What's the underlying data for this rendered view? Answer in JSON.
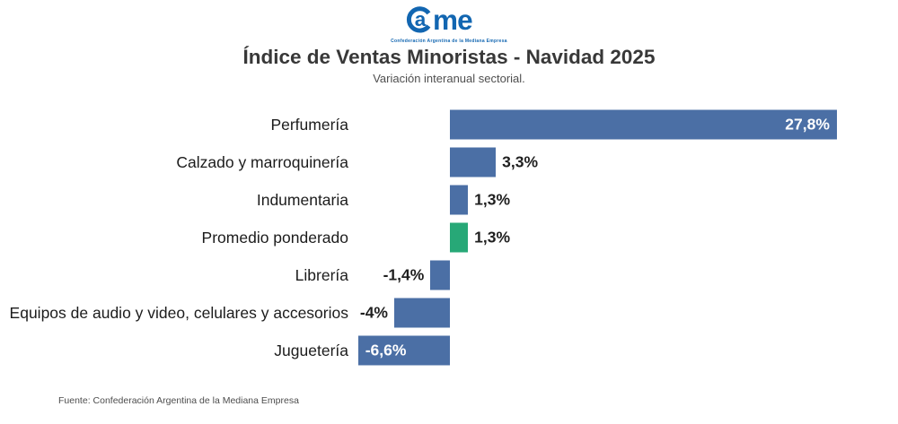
{
  "logo": {
    "letter_a": "a",
    "letters_me": "me",
    "tagline": "Confederación Argentina de la Mediana Empresa",
    "color": "#1266b1"
  },
  "header": {
    "title": "Índice de Ventas Minoristas - Navidad 2025",
    "subtitle": "Variación interanual sectorial."
  },
  "footer": {
    "source": "Fuente: Confederación Argentina de la Mediana Empresa"
  },
  "colors": {
    "bar_blue": "#4b6fa5",
    "bar_green": "#27a877"
  },
  "chart_data": {
    "type": "bar",
    "orientation": "horizontal",
    "title": "Índice de Ventas Minoristas - Navidad 2025",
    "subtitle": "Variación interanual sectorial.",
    "xlabel": "",
    "ylabel": "",
    "xlim": [
      -8,
      28
    ],
    "grid": false,
    "legend": false,
    "categories": [
      "Perfumería",
      "Calzado y marroquinería",
      "Indumentaria",
      "Promedio ponderado",
      "Librería",
      "Equipos de audio y video, celulares y accesorios",
      "Juguetería"
    ],
    "values": [
      27.8,
      3.3,
      1.3,
      1.3,
      -1.4,
      -4,
      -6.6
    ],
    "value_labels": [
      "27,8%",
      "3,3%",
      "1,3%",
      "1,3%",
      "-1,4%",
      "-4%",
      "-6,6%"
    ],
    "bar_colors": [
      "#4b6fa5",
      "#4b6fa5",
      "#4b6fa5",
      "#27a877",
      "#4b6fa5",
      "#4b6fa5",
      "#4b6fa5"
    ],
    "label_placement": [
      "inside-end",
      "outside-end",
      "outside-end",
      "outside-end",
      "outside-start",
      "outside-start",
      "inside-start"
    ]
  }
}
